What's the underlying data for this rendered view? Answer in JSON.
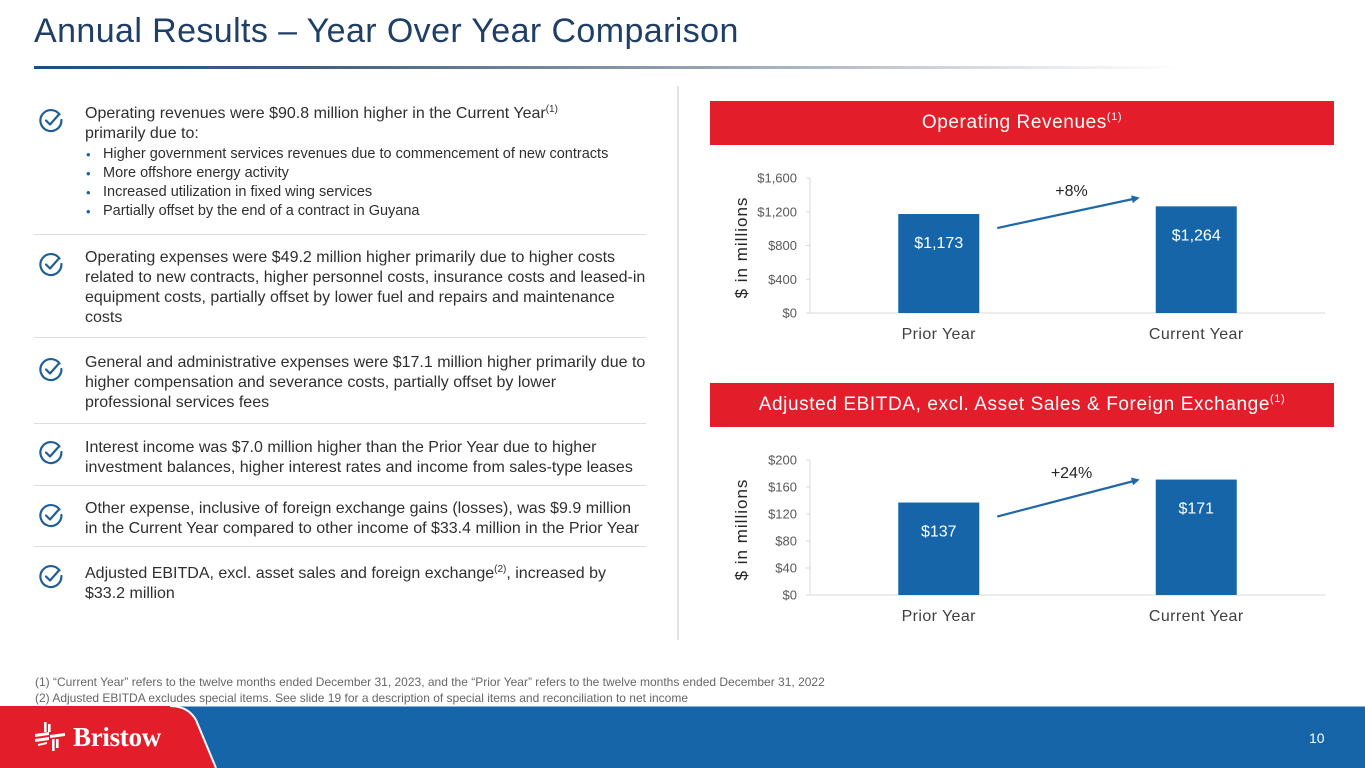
{
  "slide": {
    "title": "Annual Results – Year Over Year Comparison",
    "page_number": "10",
    "brand": {
      "name": "Bristow",
      "logo_icon": "bristow-logo-icon",
      "red": "#e31e2a",
      "blue": "#1565a8",
      "title_color": "#1f3f66"
    }
  },
  "highlights": [
    {
      "icon": "check-circle-icon",
      "text": "Operating revenues were $90.8 million higher in the Current Year",
      "sup": "(1)",
      "text_after": "primarily due to:",
      "bullets": [
        "Higher government services revenues due to commencement of new contracts",
        "More offshore energy activity",
        "Increased utilization in fixed wing services",
        "Partially offset by the end of a contract in Guyana"
      ]
    },
    {
      "icon": "check-circle-icon",
      "text": "Operating expenses were $49.2 million higher primarily due to higher costs related to new contracts, higher personnel costs, insurance costs and leased-in equipment costs, partially offset by lower fuel and repairs and maintenance costs"
    },
    {
      "icon": "check-circle-icon",
      "text": "General and administrative expenses were $17.1 million higher primarily due to higher compensation and severance costs, partially offset by lower professional services fees"
    },
    {
      "icon": "check-circle-icon",
      "text": "Interest income was $7.0 million higher than the Prior Year due to higher investment balances, higher interest rates and income from sales-type leases"
    },
    {
      "icon": "check-circle-icon",
      "text": "Other expense, inclusive of foreign exchange gains (losses), was $9.9 million in the Current Year compared to other income of $33.4 million in the Prior Year"
    },
    {
      "icon": "check-circle-icon",
      "text": "Adjusted EBITDA, excl. asset sales and foreign exchange",
      "sup": "(2)",
      "text_after": ", increased by $33.2 million"
    }
  ],
  "chart_data": [
    {
      "type": "bar",
      "title": "Operating Revenues",
      "title_sup": "(1)",
      "categories": [
        "Prior Year",
        "Current Year"
      ],
      "values": [
        1173,
        1264
      ],
      "data_labels": [
        "$1,173",
        "$1,264"
      ],
      "ylabel": "$ in millions",
      "xlabel": "",
      "ylim": [
        0,
        1600
      ],
      "yticks": [
        0,
        400,
        800,
        1200,
        1600
      ],
      "ytick_labels": [
        "$0",
        "$400",
        "$800",
        "$1,200",
        "$1,600"
      ],
      "grid": false,
      "annotation": "+8%",
      "bar_color": "#1565a8"
    },
    {
      "type": "bar",
      "title": "Adjusted EBITDA, excl. Asset Sales & Foreign Exchange",
      "title_sup": "(1)",
      "categories": [
        "Prior Year",
        "Current Year"
      ],
      "values": [
        137,
        171
      ],
      "data_labels": [
        "$137",
        "$171"
      ],
      "ylabel": "$ in millions",
      "xlabel": "",
      "ylim": [
        0,
        200
      ],
      "yticks": [
        0,
        40,
        80,
        120,
        160,
        200
      ],
      "ytick_labels": [
        "$0",
        "$40",
        "$80",
        "$120",
        "$160",
        "$200"
      ],
      "grid": false,
      "annotation": "+24%",
      "bar_color": "#1565a8"
    }
  ],
  "footnotes": [
    "(1) “Current Year” refers to the twelve months ended December 31, 2023, and the “Prior Year” refers to the twelve months ended December 31, 2022",
    "(2) Adjusted EBITDA excludes special items. See slide 19 for a description of special items and reconciliation to net income"
  ]
}
